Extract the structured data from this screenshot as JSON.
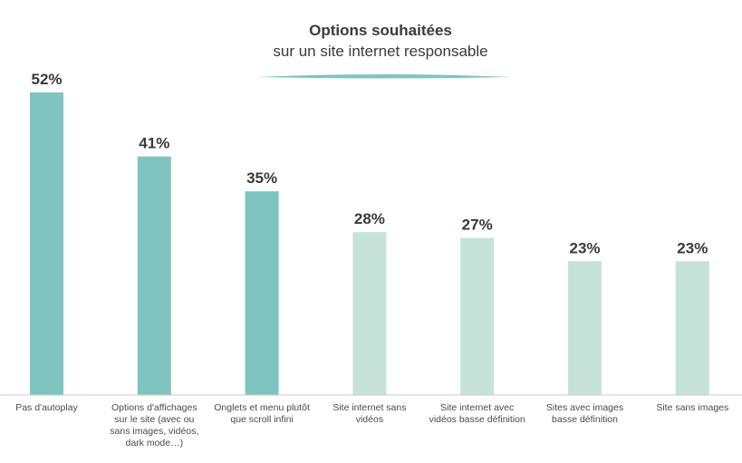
{
  "chart_data": {
    "type": "bar",
    "title": "Options souhaitées",
    "subtitle": "sur un site internet responsable",
    "categories": [
      [
        "Pas d'autoplay"
      ],
      [
        "Options d'affichages",
        "sur le site (avec ou",
        "sans images, vidéos,",
        "dark mode…)"
      ],
      [
        "Onglets et menu plutôt",
        "que scroll infini"
      ],
      [
        "Site internet sans",
        "vidéos"
      ],
      [
        "Site internet avec",
        "vidéos basse définition"
      ],
      [
        "Sites avec images",
        "basse définition"
      ],
      [
        "Site sans images"
      ]
    ],
    "values": [
      52,
      41,
      35,
      28,
      27,
      23,
      23
    ],
    "value_labels": [
      "52%",
      "41%",
      "35%",
      "28%",
      "27%",
      "23%",
      "23%"
    ],
    "highlighted": [
      true,
      true,
      true,
      false,
      false,
      false,
      false
    ],
    "ylim": [
      0,
      52
    ],
    "grid": false,
    "colors": {
      "highlight": "#7fc4c0",
      "normal": "#c6e3da",
      "axis": "#cccccc",
      "accent_line": "#7fc4c0"
    }
  }
}
